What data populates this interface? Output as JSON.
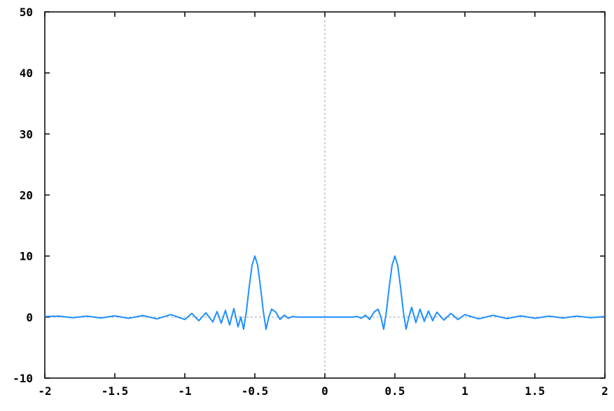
{
  "chart_data": {
    "type": "line",
    "title": "",
    "xlabel": "",
    "ylabel": "",
    "xlim": [
      -2,
      2
    ],
    "ylim": [
      -10,
      50
    ],
    "grid": false,
    "legend": "none",
    "zero_axis_lines": true,
    "x_ticks": [
      "-2",
      "-1.5",
      "-1",
      "-0.5",
      "0",
      "0.5",
      "1",
      "1.5",
      "2"
    ],
    "y_ticks": [
      "-10",
      "0",
      "10",
      "20",
      "30",
      "40",
      "50"
    ],
    "series": [
      {
        "color": "#1e90ff",
        "x": [
          -2.0,
          -1.9,
          -1.8,
          -1.7,
          -1.6,
          -1.5,
          -1.4,
          -1.3,
          -1.2,
          -1.1,
          -1.0,
          -0.95,
          -0.9,
          -0.85,
          -0.8,
          -0.77,
          -0.74,
          -0.71,
          -0.68,
          -0.65,
          -0.62,
          -0.6,
          -0.58,
          -0.56,
          -0.54,
          -0.52,
          -0.5,
          -0.48,
          -0.46,
          -0.44,
          -0.42,
          -0.4,
          -0.38,
          -0.35,
          -0.32,
          -0.29,
          -0.26,
          -0.23,
          -0.2,
          -0.15,
          -0.1,
          0.0,
          0.1,
          0.15,
          0.2,
          0.23,
          0.26,
          0.29,
          0.32,
          0.35,
          0.38,
          0.4,
          0.42,
          0.44,
          0.46,
          0.48,
          0.5,
          0.52,
          0.54,
          0.56,
          0.58,
          0.6,
          0.62,
          0.65,
          0.68,
          0.71,
          0.74,
          0.77,
          0.8,
          0.85,
          0.9,
          0.95,
          1.0,
          1.1,
          1.2,
          1.3,
          1.4,
          1.5,
          1.6,
          1.7,
          1.8,
          1.9,
          2.0
        ],
        "y": [
          0.1,
          0.15,
          -0.1,
          0.15,
          -0.15,
          0.2,
          -0.2,
          0.25,
          -0.3,
          0.4,
          -0.4,
          0.6,
          -0.6,
          0.7,
          -0.8,
          0.9,
          -1.0,
          1.1,
          -1.3,
          1.4,
          -1.6,
          0.0,
          -2.0,
          1.0,
          5.0,
          8.5,
          10.0,
          8.5,
          5.0,
          1.0,
          -2.0,
          0.0,
          1.3,
          0.8,
          -0.4,
          0.3,
          -0.2,
          0.1,
          0.0,
          0.0,
          0.0,
          0.0,
          0.0,
          0.0,
          0.0,
          0.1,
          -0.2,
          0.3,
          -0.4,
          0.8,
          1.3,
          0.0,
          -2.0,
          1.0,
          5.0,
          8.5,
          10.0,
          8.5,
          5.0,
          1.0,
          -2.0,
          0.0,
          1.6,
          -0.9,
          1.3,
          -0.7,
          1.0,
          -0.6,
          0.8,
          -0.5,
          0.6,
          -0.4,
          0.4,
          -0.3,
          0.3,
          -0.25,
          0.2,
          -0.2,
          0.15,
          -0.15,
          0.15,
          -0.1,
          0.1
        ]
      }
    ]
  }
}
